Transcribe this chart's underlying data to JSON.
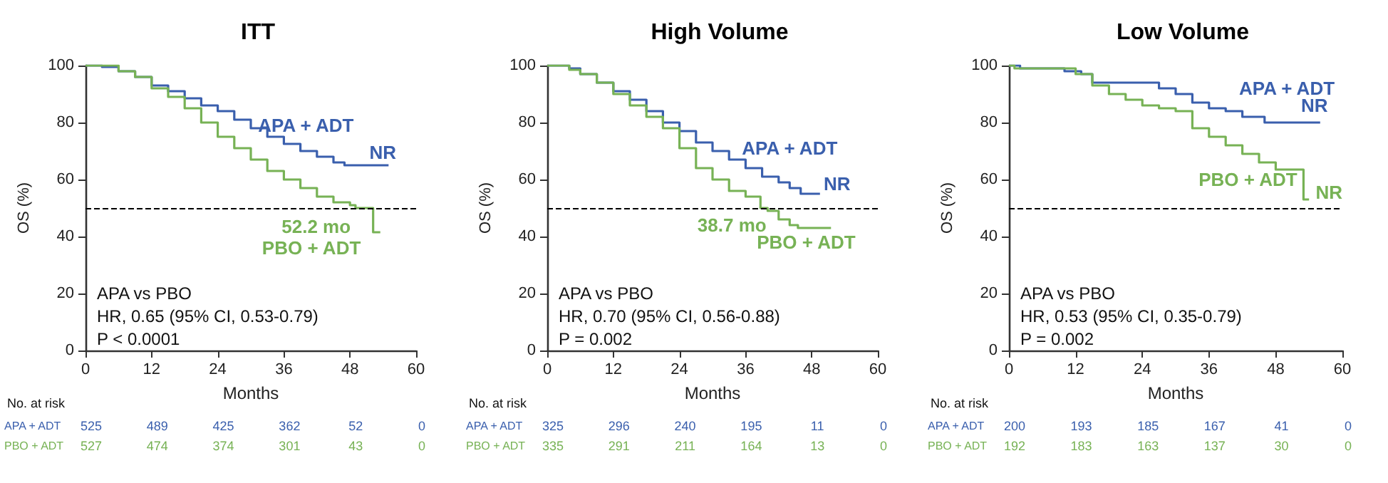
{
  "chart_data": [
    {
      "type": "step",
      "title": "ITT",
      "xlabel": "Months",
      "ylabel": "OS (%)",
      "xlim": [
        0,
        60
      ],
      "xticks": [
        0,
        12,
        24,
        36,
        48,
        60
      ],
      "ylim": [
        0,
        100
      ],
      "yticks": [
        0,
        20,
        40,
        60,
        80,
        100
      ],
      "series": [
        {
          "name": "APA + ADT",
          "color": "#3a5fad",
          "x": [
            0,
            3,
            6,
            9,
            12,
            15,
            18,
            21,
            24,
            27,
            30,
            33,
            36,
            39,
            42,
            45,
            47,
            55
          ],
          "values": [
            100,
            99.5,
            98,
            96,
            93,
            91,
            88.5,
            86,
            84,
            81,
            78,
            75,
            72.5,
            70,
            68,
            66,
            65,
            65
          ]
        },
        {
          "name": "PBO + ADT",
          "color": "#77b255",
          "x": [
            0,
            6,
            9,
            12,
            15,
            18,
            21,
            24,
            27,
            30,
            33,
            36,
            39,
            42,
            45,
            48,
            49,
            52.2,
            52.2,
            53.5
          ],
          "values": [
            100,
            98,
            96,
            92,
            89,
            85,
            80,
            75,
            71,
            67,
            63,
            60,
            57,
            54,
            52,
            51,
            50,
            50,
            41.5,
            41.5
          ]
        }
      ],
      "ref_lines": [
        {
          "axis": "y",
          "value": 50,
          "color": "#000000",
          "line_style": "dashed"
        }
      ],
      "annotations": [
        "APA vs PBO",
        "HR, 0.65 (95% CI, 0.53-0.79)",
        "P < 0.0001",
        {
          "text": "52.2 mo",
          "x": 52.2,
          "y": 50
        },
        {
          "text": "NR",
          "x": 55,
          "y": 65
        },
        "No. at risk",
        "APA + ADT 525 489 425 362 52 0",
        "PBO + ADT 527 474 374 301 43 0"
      ]
    },
    {
      "type": "step",
      "title": "High Volume",
      "xlabel": "Months",
      "ylabel": "OS (%)",
      "xlim": [
        0,
        60
      ],
      "xticks": [
        0,
        12,
        24,
        36,
        48,
        60
      ],
      "ylim": [
        0,
        100
      ],
      "yticks": [
        0,
        20,
        40,
        60,
        80,
        100
      ],
      "series": [
        {
          "name": "APA + ADT",
          "color": "#3a5fad",
          "x": [
            0,
            4,
            6,
            9,
            12,
            15,
            18,
            21,
            24,
            27,
            30,
            33,
            36,
            39,
            42,
            44,
            46,
            46,
            49.5
          ],
          "values": [
            100,
            99,
            97,
            94,
            91,
            88,
            84,
            80,
            77,
            73,
            70,
            67,
            64,
            61,
            59,
            57,
            57,
            55,
            55
          ]
        },
        {
          "name": "PBO + ADT",
          "color": "#77b255",
          "x": [
            0,
            4,
            6,
            9,
            12,
            15,
            18,
            21,
            24,
            27,
            30,
            33,
            36,
            38.7,
            40,
            42,
            44,
            45.5,
            51.5
          ],
          "values": [
            100,
            98.5,
            97,
            94,
            90,
            86,
            82,
            78,
            71,
            64,
            60,
            56,
            54,
            50,
            49,
            46,
            44,
            43,
            43
          ]
        }
      ],
      "ref_lines": [
        {
          "axis": "y",
          "value": 50,
          "color": "#000000",
          "line_style": "dashed"
        }
      ],
      "annotations": [
        "APA vs PBO",
        "HR, 0.70 (95% CI, 0.56-0.88)",
        "P = 0.002",
        {
          "text": "38.7 mo",
          "x": 38.7,
          "y": 50
        },
        {
          "text": "NR",
          "x": 49.5,
          "y": 55
        },
        "No. at risk",
        "APA + ADT 325 296 240 195 11 0",
        "PBO + ADT 335 291 211 164 13 0"
      ]
    },
    {
      "type": "step",
      "title": "Low Volume",
      "xlabel": "Months",
      "ylabel": "OS (%)",
      "xlim": [
        0,
        60
      ],
      "xticks": [
        0,
        12,
        24,
        36,
        48,
        60
      ],
      "ylim": [
        0,
        100
      ],
      "yticks": [
        0,
        20,
        40,
        60,
        80,
        100
      ],
      "series": [
        {
          "name": "APA + ADT",
          "color": "#3a5fad",
          "x": [
            0,
            2,
            10,
            13,
            15,
            24,
            27,
            30,
            33,
            36,
            39,
            42,
            45,
            46,
            56
          ],
          "values": [
            100,
            99,
            98,
            97,
            94,
            94,
            92,
            90,
            87,
            85,
            84,
            82,
            82,
            80,
            80
          ]
        },
        {
          "name": "PBO + ADT",
          "color": "#77b255",
          "x": [
            0,
            1,
            9,
            12,
            15,
            18,
            21,
            24,
            27,
            30,
            33,
            36,
            39,
            42,
            45,
            48,
            53,
            53,
            54
          ],
          "values": [
            100,
            99,
            99,
            97,
            93,
            90,
            88,
            86,
            85,
            84,
            78,
            75,
            72,
            69,
            66,
            63.5,
            63.5,
            53,
            53
          ]
        }
      ],
      "ref_lines": [
        {
          "axis": "y",
          "value": 50,
          "color": "#000000",
          "line_style": "dashed"
        }
      ],
      "annotations": [
        "APA vs PBO",
        "HR, 0.53 (95% CI, 0.35-0.79)",
        "P = 0.002",
        {
          "text": "NR",
          "x": 56,
          "y": 80
        },
        {
          "text": "NR",
          "x": 54,
          "y": 53
        },
        "No. at risk",
        "APA + ADT 200 193 185 167 41 0",
        "PBO + ADT 192 183 163 137 30 0"
      ]
    }
  ]
}
